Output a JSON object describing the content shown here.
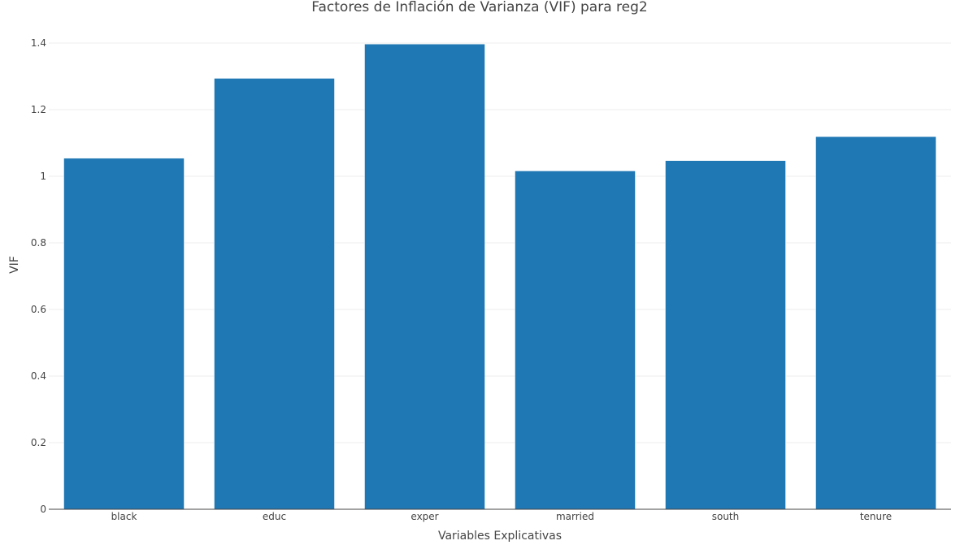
{
  "chart_data": {
    "type": "bar",
    "title": "Factores de Inflación de Varianza (VIF) para reg2",
    "xlabel": "Variables Explicativas",
    "ylabel": "VIF",
    "categories": [
      "black",
      "educ",
      "exper",
      "married",
      "south",
      "tenure"
    ],
    "values": [
      1.054,
      1.294,
      1.397,
      1.016,
      1.047,
      1.119
    ],
    "ylim": [
      0,
      1.4
    ],
    "yticks": [
      0,
      0.2,
      0.4,
      0.6,
      0.8,
      1,
      1.2,
      1.4
    ],
    "ytick_labels": [
      "0",
      "0.2",
      "0.4",
      "0.6",
      "0.8",
      "1",
      "1.2",
      "1.4"
    ],
    "grid": true,
    "legend": "none",
    "bar_color": "#1f77b4"
  }
}
